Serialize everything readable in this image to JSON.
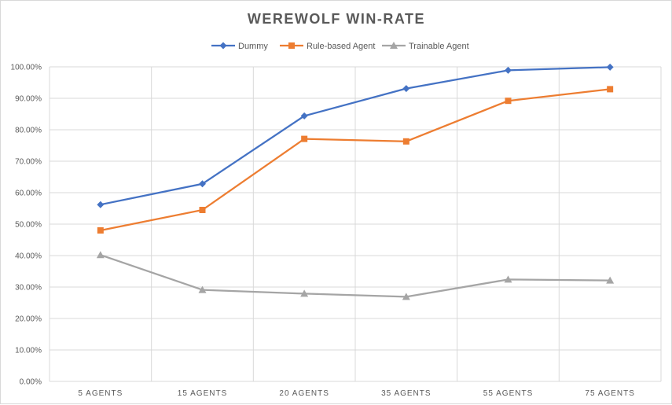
{
  "chart_data": {
    "type": "line",
    "title": "WEREWOLF WIN-RATE",
    "xlabel": "",
    "ylabel": "",
    "categories": [
      "5 AGENTS",
      "15 AGENTS",
      "20 AGENTS",
      "35 AGENTS",
      "55 AGENTS",
      "75 AGENTS"
    ],
    "ylim": [
      0,
      100
    ],
    "y_ticks": [
      "0.00%",
      "10.00%",
      "20.00%",
      "30.00%",
      "40.00%",
      "50.00%",
      "60.00%",
      "70.00%",
      "80.00%",
      "90.00%",
      "100.00%"
    ],
    "grid": true,
    "legend_position": "top",
    "series": [
      {
        "name": "Dummy",
        "color": "#4472c4",
        "marker": "diamond",
        "values": [
          56.2,
          62.8,
          84.4,
          93.1,
          98.9,
          99.9
        ]
      },
      {
        "name": "Rule-based Agent",
        "color": "#ed7d31",
        "marker": "square",
        "values": [
          48.0,
          54.5,
          77.1,
          76.3,
          89.2,
          92.9
        ]
      },
      {
        "name": "Trainable Agent",
        "color": "#a5a5a5",
        "marker": "triangle",
        "values": [
          40.2,
          29.1,
          27.9,
          26.9,
          32.4,
          32.1
        ]
      }
    ]
  }
}
